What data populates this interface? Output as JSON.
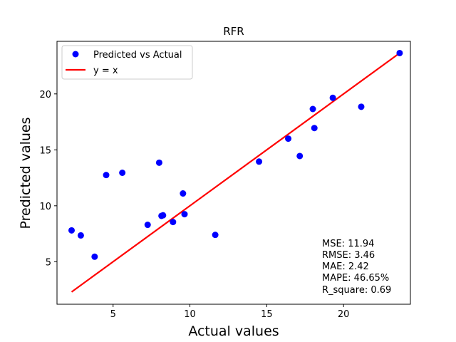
{
  "chart_data": {
    "type": "scatter",
    "title": "RFR",
    "xlabel": "Actual values",
    "ylabel": "Predicted values",
    "xlim": [
      1.35,
      24.35
    ],
    "ylim": [
      1.2,
      24.7
    ],
    "xticks": [
      5,
      10,
      15,
      20
    ],
    "yticks": [
      5,
      10,
      15,
      20
    ],
    "grid": false,
    "legend_position": "top-left",
    "series": [
      {
        "name": "Predicted vs Actual",
        "kind": "points",
        "color": "#0000ff",
        "points": [
          [
            2.3,
            7.8
          ],
          [
            2.9,
            7.35
          ],
          [
            3.8,
            5.45
          ],
          [
            4.55,
            12.75
          ],
          [
            5.6,
            12.95
          ],
          [
            7.25,
            8.3
          ],
          [
            8.0,
            13.85
          ],
          [
            8.15,
            9.1
          ],
          [
            8.25,
            9.15
          ],
          [
            8.9,
            8.55
          ],
          [
            9.55,
            11.1
          ],
          [
            9.65,
            9.25
          ],
          [
            11.65,
            7.4
          ],
          [
            14.5,
            13.95
          ],
          [
            16.4,
            16.0
          ],
          [
            17.15,
            14.45
          ],
          [
            18.0,
            18.65
          ],
          [
            18.1,
            16.95
          ],
          [
            19.3,
            19.65
          ],
          [
            21.15,
            18.85
          ],
          [
            23.65,
            23.65
          ]
        ]
      },
      {
        "name": "y = x",
        "kind": "line",
        "color": "#ff0000",
        "points": [
          [
            2.3,
            2.3
          ],
          [
            23.65,
            23.65
          ]
        ]
      }
    ],
    "annotations": [
      "MSE: 11.94",
      "RMSE: 3.46",
      "MAE: 2.42",
      "MAPE: 46.65%",
      "R_square: 0.69"
    ]
  }
}
